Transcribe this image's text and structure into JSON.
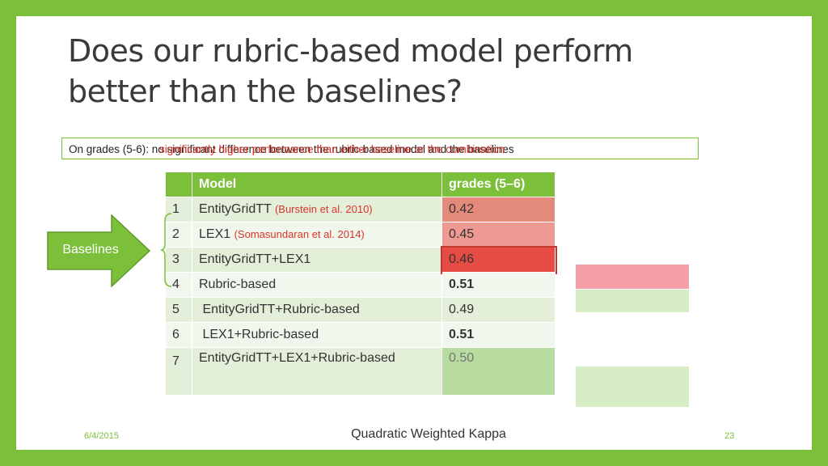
{
  "slide": {
    "title_line1": "Does our rubric-based  model perform",
    "title_line2": "better than the baselines?",
    "note_line1": "On grades (5-6): no significant difference between the rubric-based model and the baselines",
    "note_line2": "significantly higher performance than either baseline or the combination",
    "note_line3": "On grades (5-6): ",
    "table": {
      "headers": [
        "",
        "Model",
        "grades (5–6)"
      ],
      "rows": [
        {
          "num": "1",
          "model": "EntityGridTT",
          "cite": "(Burstein et al. 2010)",
          "score": "0.42"
        },
        {
          "num": "2",
          "model": "LEX1",
          "cite": "(Somasundaran et al. 2014)",
          "score": "0.45"
        },
        {
          "num": "3",
          "model": "EntityGridTT+LEX1",
          "cite": "",
          "score": "0.46"
        },
        {
          "num": "4",
          "model": "Rubric-based",
          "cite": "",
          "score": "0.51"
        },
        {
          "num": "5",
          "model": " EntityGridTT+Rubric-based",
          "cite": "",
          "score": "0.49"
        },
        {
          "num": "6",
          "model": " LEX1+Rubric-based",
          "cite": "",
          "score": "0.51"
        },
        {
          "num": "7",
          "model": "EntityGridTT+LEX1+Rubric-based",
          "cite": "",
          "score": "0.50"
        }
      ]
    },
    "arrow_label": "Baselines",
    "footer_date": "6/4/2015",
    "footer_center": "Quadratic Weighted Kappa",
    "footer_page": "23"
  },
  "colors": {
    "accent_green": "#7bbf3a",
    "highlight_red": "#e64c44",
    "highlight_green": "#b8dba0",
    "citation_red": "#d9342b"
  }
}
